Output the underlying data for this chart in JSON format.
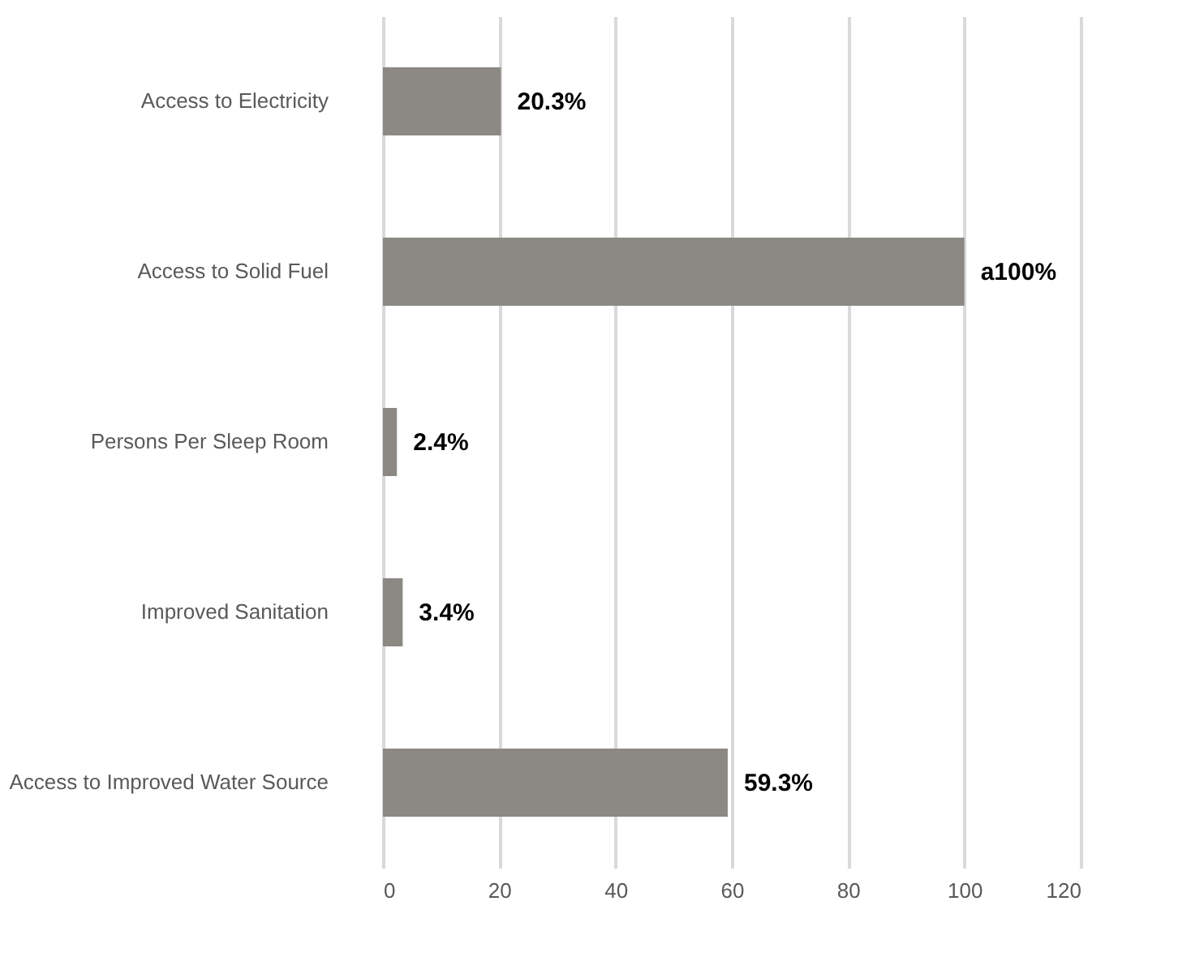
{
  "chart_data": {
    "type": "bar",
    "orientation": "horizontal",
    "categories": [
      "Access to Electricity",
      "Access to Solid Fuel",
      "Persons Per Sleep Room",
      "Improved Sanitation",
      "Access to Improved Water Source"
    ],
    "values": [
      20.3,
      100,
      2.4,
      3.4,
      59.3
    ],
    "value_labels": [
      "20.3%",
      "a100%",
      "2.4%",
      "3.4%",
      "59.3%"
    ],
    "color": "#8c8984",
    "xlim": [
      0,
      120
    ],
    "xticks": [
      0,
      20,
      40,
      60,
      80,
      100,
      120
    ],
    "grid": "x"
  }
}
